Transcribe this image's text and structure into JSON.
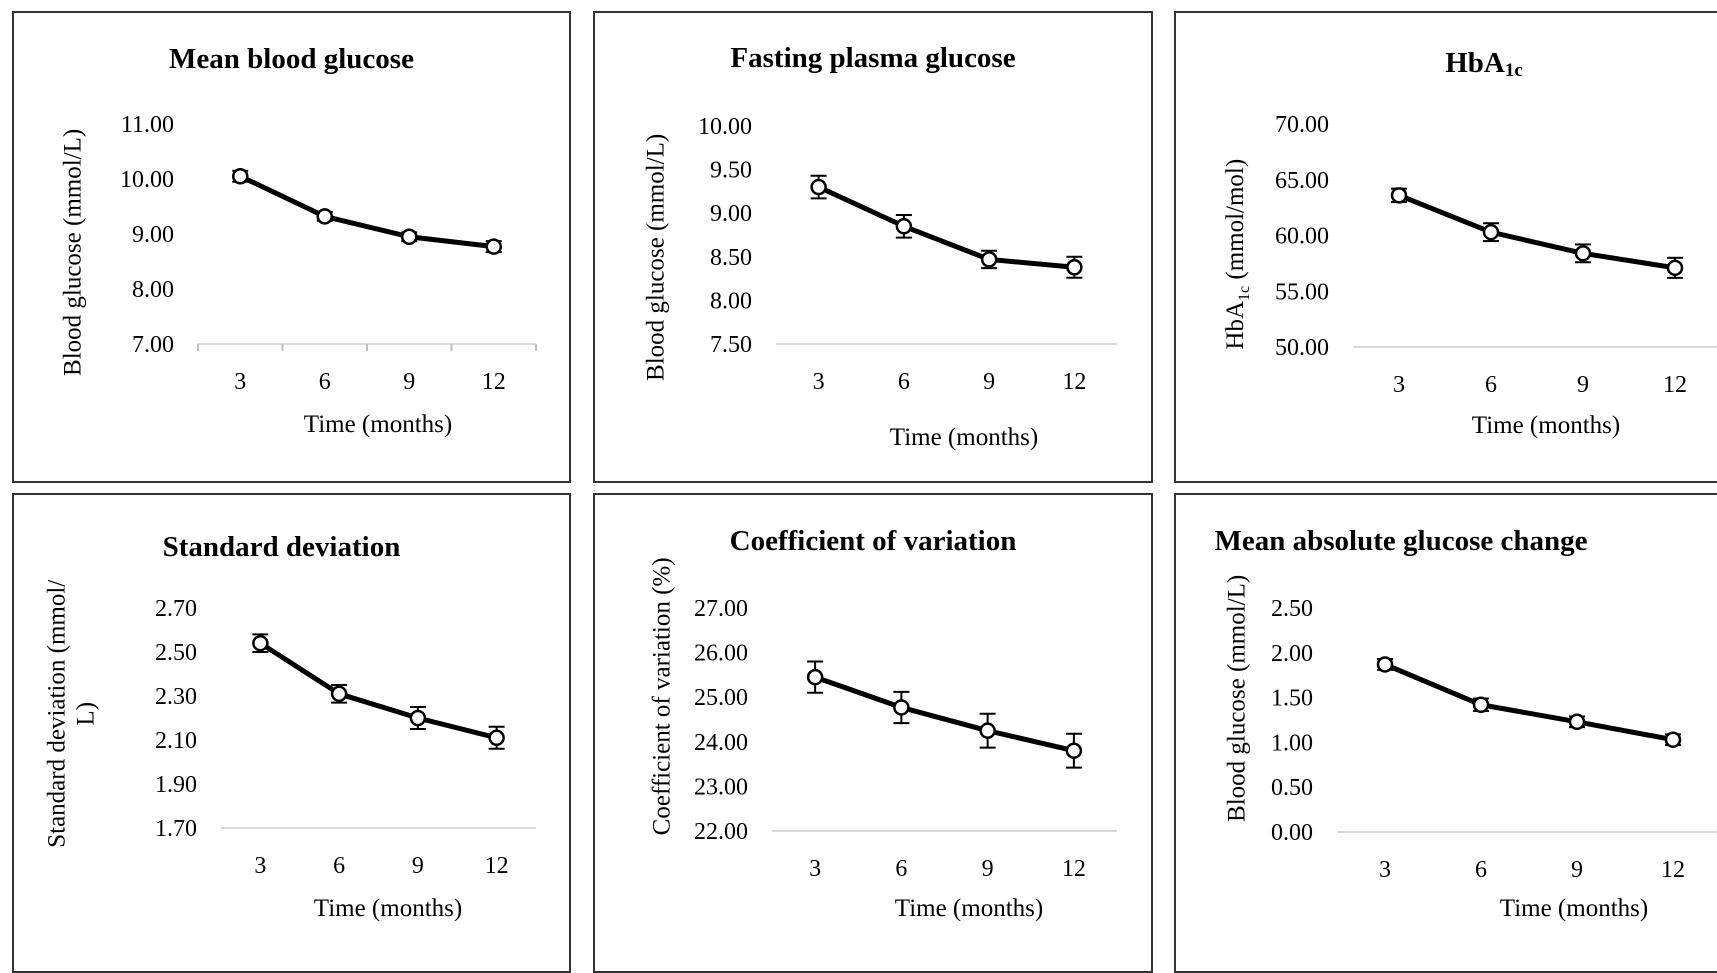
{
  "chart_data": [
    {
      "type": "line",
      "title": "Mean blood glucose",
      "xlabel": "Time (months)",
      "ylabel": "Blood glucose (mmol/L)",
      "categories": [
        "3",
        "6",
        "9",
        "12"
      ],
      "ylim": [
        7.0,
        11.0
      ],
      "yticks": [
        "7.00",
        "8.00",
        "9.00",
        "10.00",
        "11.00"
      ],
      "series": [
        {
          "values": [
            10.05,
            9.32,
            8.95,
            8.77
          ],
          "error": [
            0.1,
            0.08,
            0.08,
            0.1
          ]
        }
      ]
    },
    {
      "type": "line",
      "title": "Fasting plasma glucose",
      "xlabel": "Time (months)",
      "ylabel": "Blood glucose (mmol/L)",
      "categories": [
        "3",
        "6",
        "9",
        "12"
      ],
      "ylim": [
        7.5,
        10.0
      ],
      "yticks": [
        "7.50",
        "8.00",
        "8.50",
        "9.00",
        "9.50",
        "10.00"
      ],
      "series": [
        {
          "values": [
            9.3,
            8.85,
            8.47,
            8.38
          ],
          "error": [
            0.13,
            0.13,
            0.1,
            0.12
          ]
        }
      ]
    },
    {
      "type": "line",
      "title": "HbA",
      "title_sub": "1c",
      "xlabel": "Time (months)",
      "ylabel": "HbA",
      "ylabel_sub": "1c",
      "ylabel_suffix": " (mmol/mol)",
      "categories": [
        "3",
        "6",
        "9",
        "12"
      ],
      "ylim": [
        50.0,
        70.0
      ],
      "yticks": [
        "50.00",
        "55.00",
        "60.00",
        "65.00",
        "70.00"
      ],
      "series": [
        {
          "values": [
            63.6,
            60.3,
            58.4,
            57.1
          ],
          "error": [
            0.6,
            0.8,
            0.8,
            0.9
          ]
        }
      ]
    },
    {
      "type": "line",
      "title": "Standard deviation",
      "xlabel": "Time (months)",
      "ylabel": "Standard deviation (mmol/",
      "ylabel_line2": "L)",
      "categories": [
        "3",
        "6",
        "9",
        "12"
      ],
      "ylim": [
        1.7,
        2.7
      ],
      "yticks": [
        "1.70",
        "1.90",
        "2.10",
        "2.30",
        "2.50",
        "2.70"
      ],
      "series": [
        {
          "values": [
            2.54,
            2.31,
            2.2,
            2.11
          ],
          "error": [
            0.04,
            0.04,
            0.05,
            0.05
          ]
        }
      ]
    },
    {
      "type": "line",
      "title": "Coefficient of variation",
      "xlabel": "Time (months)",
      "ylabel": "Coefficient of variation (%)",
      "categories": [
        "3",
        "6",
        "9",
        "12"
      ],
      "ylim": [
        22.0,
        27.0
      ],
      "yticks": [
        "22.00",
        "23.00",
        "24.00",
        "25.00",
        "26.00",
        "27.00"
      ],
      "series": [
        {
          "values": [
            25.45,
            24.77,
            24.25,
            23.8
          ],
          "error": [
            0.35,
            0.35,
            0.38,
            0.38
          ]
        }
      ]
    },
    {
      "type": "line",
      "title": "Mean absolute glucose change",
      "xlabel": "Time (months)",
      "ylabel": "Blood glucose (mmol/L)",
      "categories": [
        "3",
        "6",
        "9",
        "12"
      ],
      "ylim": [
        0.0,
        2.5
      ],
      "yticks": [
        "0.00",
        "0.50",
        "1.00",
        "1.50",
        "2.00",
        "2.50"
      ],
      "series": [
        {
          "values": [
            1.87,
            1.42,
            1.23,
            1.03
          ],
          "error": [
            0.06,
            0.07,
            0.06,
            0.06
          ]
        }
      ]
    }
  ]
}
